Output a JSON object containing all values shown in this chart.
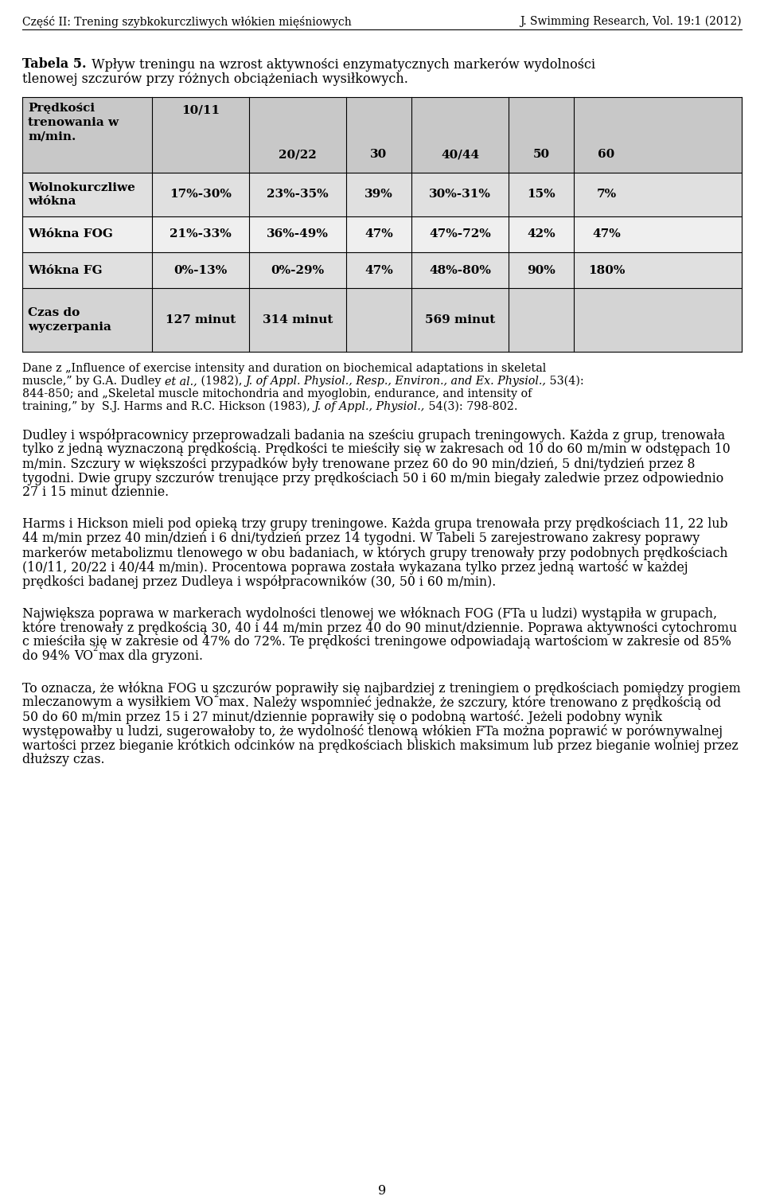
{
  "header_left": "Część II: Trening szybkokurczliwych włókien mięśniowych",
  "header_right": "J. Swimming Research, Vol. 19:1 (2012)",
  "table_title_bold": "Tabela 5.",
  "table_title_normal": " Wpływ treningu na wzrost aktywności enzymatycznych markerów wydolności",
  "table_title_line2": "tlenowej szczurów przy różnych obciążeniach wysiłkowych.",
  "col_headers_row1": [
    "Prędkości\ntrenowania w\nm/min.",
    "10/11"
  ],
  "col_headers_row2": [
    "20/22",
    "30",
    "40/44",
    "50",
    "60"
  ],
  "table_rows": [
    {
      "label": "Wolnokurczliwe\nwłókna",
      "values": [
        "17%-30%",
        "23%-35%",
        "39%",
        "30%-31%",
        "15%",
        "7%"
      ]
    },
    {
      "label": "Włókna FOG",
      "values": [
        "21%-33%",
        "36%-49%",
        "47%",
        "47%-72%",
        "42%",
        "47%"
      ]
    },
    {
      "label": "Włókna FG",
      "values": [
        "0%-13%",
        "0%-29%",
        "47%",
        "48%-80%",
        "90%",
        "180%"
      ]
    },
    {
      "label": "Czas do\nwyczerpania",
      "values": [
        "127 minut",
        "314 minut",
        "",
        "569 minut",
        "",
        ""
      ]
    }
  ],
  "header_bg": "#c8c8c8",
  "row_bg_even": "#e0e0e0",
  "row_bg_odd": "#efefef",
  "last_row_bg": "#d4d4d4",
  "source_lines": [
    [
      [
        "Dane z „Influence of exercise intensity and duration on biochemical adaptations in skeletal",
        "normal"
      ]
    ],
    [
      [
        "muscle,” by G.A. Dudley ",
        "normal"
      ],
      [
        "et al.,",
        "italic"
      ],
      [
        " (1982), ",
        "normal"
      ],
      [
        "J. of Appl. Physiol., Resp., Environ., and Ex. Physiol.,",
        "italic"
      ],
      [
        " 53(4):",
        "normal"
      ]
    ],
    [
      [
        "844-850; and „Skeletal muscle mitochondria and myoglobin, endurance, and intensity of",
        "normal"
      ]
    ],
    [
      [
        "training,” by  S.J. Harms and R.C. Hickson (1983), ",
        "normal"
      ],
      [
        "J. of Appl., Physiol.,",
        "italic"
      ],
      [
        " 54(3): 798-802.",
        "normal"
      ]
    ]
  ],
  "paragraphs": [
    "Dudley i współpracownicy przeprowadzali badania na sześciu grupach treningowych. Każda z grup, trenowała tylko z jedną wyznaczoną prędkością. Prędkości te mieściły się w zakresach od 10 do 60 m/min w odstępach 10 m/min.  Szczury w większości przypadków były trenowane przez 60 do 90 min/dzień, 5 dni/tydzień przez 8 tygodni. Dwie grupy szczurów trenujące przy prędkościach 50 i 60 m/min biegały zaledwie przez odpowiednio 27 i 15 minut dziennie.",
    "Harms i Hickson mieli pod opieką trzy grupy treningowe.  Każda grupa trenowała przy prędkościach 11, 22 lub 44 m/min  przez 40 min/dzień i 6 dni/tydzień przez 14 tygodni. W Tabeli 5 zarejestrowano zakresy poprawy markerów metabolizmu tlenowego  w obu badaniach, w których grupy trenowały przy podobnych prędkościach (10/11, 20/22 i 40/44 m/min). Procentowa poprawa została wykazana tylko przez jedną wartość w każdej prędkości badanej przez Dudleya i współpracowników (30, 50 i 60 m/min).",
    "Największa poprawa w markerach wydolności tlenowej we włóknach FOG (FTa u ludzi) wystąpiła w grupach, które trenowały z prędkością 30, 40 i 44 m/min przez 40 do 90 minut/dziennie.  Poprawa  aktywności cytochromu c mieściła się w zakresie od 47% do 72%. Te prędkości treningowe odpowiadają wartościom w zakresie od 85% do 94% VO₂​max dla gryzoni.",
    "To oznacza, że włókna FOG u szczurów poprawiły się najbardziej z treningiem o prędkościach pomiędzy progiem mleczanowym a wysiłkiem VO₂​max. Należy wspomnieć  jednakże, że szczury, które trenowano z prędkością od 50 do 60 m/min przez 15 i 27 minut/dziennie poprawiły się o podobną wartość. Jeżeli podobny wynik występowałby u ludzi, sugerowałoby to, że wydolność tlenową włókien FTa można poprawić w porównywalnej wartości przez bieganie krótkich odcinków na prędkościach bliskich maksimum lub przez bieganie wolniej przez dłuższy czas."
  ],
  "page_number": "9"
}
